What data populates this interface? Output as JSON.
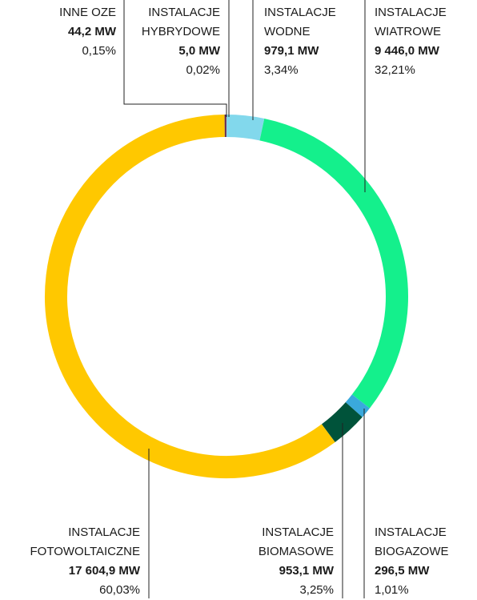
{
  "chart_data": {
    "type": "donut",
    "categories": [
      "INSTALACJE\nWODNE",
      "INSTALACJE\nWIATROWE",
      "INSTALACJE\nBIOGAZOWE",
      "INSTALACJE\nBIOMASOWE",
      "INSTALACJE\nFOTOWOLTAICZNE",
      "INNE OZE",
      "INSTALACJE\nHYBRYDOWE"
    ],
    "values": [
      979.1,
      9446.0,
      296.5,
      953.1,
      17604.9,
      44.2,
      5.0
    ],
    "value_labels": [
      "979,1 MW",
      "9 446,0 MW",
      "296,5 MW",
      "953,1 MW",
      "17 604,9 MW",
      "44,2 MW",
      "5,0 MW"
    ],
    "percent_labels": [
      "3,34%",
      "32,21%",
      "1,01%",
      "3,25%",
      "60,03%",
      "0,15%",
      "0,02%"
    ],
    "colors": [
      "#82d8ec",
      "#14f08c",
      "#3aa9dc",
      "#00533a",
      "#ffc800",
      "#5a2a55",
      "#d0312d"
    ]
  }
}
